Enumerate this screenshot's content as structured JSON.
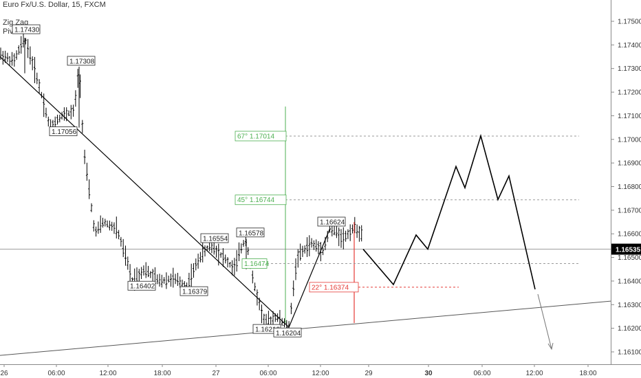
{
  "header": {
    "symbol_title": "Euro Fx/U.S. Dollar, 15, FXCM",
    "indicator_1": "Zig Zag",
    "indicator_2": "Pivots HL"
  },
  "colors": {
    "background": "#ffffff",
    "bars": "#000000",
    "green": "#4caf50",
    "red": "#e53935",
    "grid": "#9e9e9e"
  },
  "chart_data": {
    "type": "ohlc",
    "y_axis": {
      "min": 1.1605,
      "max": 1.1758,
      "ticks": [
        "1.17500",
        "1.17400",
        "1.17300",
        "1.17200",
        "1.17100",
        "1.17000",
        "1.16900",
        "1.16800",
        "1.16700",
        "1.16600",
        "1.16500",
        "1.16400",
        "1.16300",
        "1.16200",
        "1.16100"
      ]
    },
    "x_axis": {
      "ticks": [
        {
          "label": "26",
          "bold": false
        },
        {
          "label": "06:00",
          "bold": false
        },
        {
          "label": "12:00",
          "bold": false
        },
        {
          "label": "18:00",
          "bold": false
        },
        {
          "label": "27",
          "bold": false
        },
        {
          "label": "06:00",
          "bold": false
        },
        {
          "label": "12:00",
          "bold": false
        },
        {
          "label": "29",
          "bold": false
        },
        {
          "label": "30",
          "bold": true
        },
        {
          "label": "06:00",
          "bold": false
        },
        {
          "label": "12:00",
          "bold": false
        },
        {
          "label": "18:00",
          "bold": false
        }
      ]
    },
    "current_price": "1.16535",
    "pivot_labels": [
      {
        "text": "1.17430",
        "price": 1.1743
      },
      {
        "text": "1.17308",
        "price": 1.17308
      },
      {
        "text": "1.17056",
        "price": 1.17056
      },
      {
        "text": "1.16402",
        "price": 1.16402
      },
      {
        "text": "1.16379",
        "price": 1.16379
      },
      {
        "text": "1.16554",
        "price": 1.16554
      },
      {
        "text": "1.16578",
        "price": 1.16578
      },
      {
        "text": "1.16219",
        "price": 1.16219
      },
      {
        "text": "1.16204",
        "price": 1.16204
      },
      {
        "text": "1.16624",
        "price": 1.16624
      }
    ],
    "fib_levels": [
      {
        "text": "67° 1.17014",
        "price": 1.17014,
        "color": "green"
      },
      {
        "text": "45° 1.16744",
        "price": 1.16744,
        "color": "green"
      },
      {
        "text": "1.16474",
        "price": 1.16474,
        "color": "green"
      },
      {
        "text": "22° 1.16374",
        "price": 1.16374,
        "color": "red"
      }
    ],
    "projection_path_prices": [
      1.16535,
      1.16385,
      1.16595,
      1.16535,
      1.16885,
      1.16795,
      1.17015,
      1.16745,
      1.16845,
      1.16365
    ],
    "trendline_high": [
      1.1735,
      1.16204
    ],
    "trendline_low": [
      1.16085,
      1.16315
    ]
  }
}
